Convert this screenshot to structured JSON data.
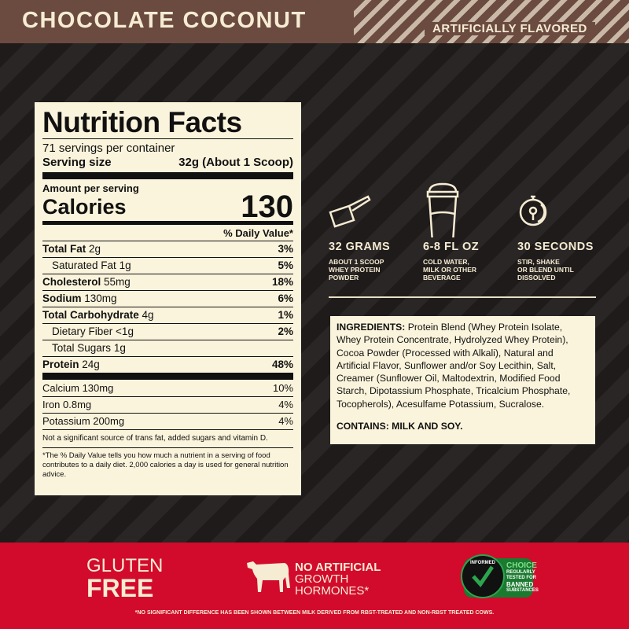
{
  "header": {
    "flavor": "CHOCOLATE COCONUT",
    "flavor_note": "ARTIFICIALLY FLAVORED"
  },
  "nutrition": {
    "title": "Nutrition Facts",
    "servings": "71 servings per container",
    "serving_size_label": "Serving size",
    "serving_size_value": "32g (About 1 Scoop)",
    "amount_per_serving": "Amount per serving",
    "calories_label": "Calories",
    "calories_value": "130",
    "dv_header": "% Daily Value*",
    "rows": [
      {
        "name": "Total Fat",
        "amount": "2g",
        "dv": "3%"
      },
      {
        "name": "Saturated Fat",
        "amount": "1g",
        "dv": "5%"
      },
      {
        "name": "Cholesterol",
        "amount": "55mg",
        "dv": "18%"
      },
      {
        "name": "Sodium",
        "amount": "130mg",
        "dv": "6%"
      },
      {
        "name": "Total Carbohydrate",
        "amount": "4g",
        "dv": "1%"
      },
      {
        "name": "Dietary Fiber",
        "amount": "<1g",
        "dv": "2%"
      },
      {
        "name": "Total Sugars",
        "amount": "1g",
        "dv": ""
      },
      {
        "name": "Protein",
        "amount": "24g",
        "dv": "48%"
      }
    ],
    "vitamins": [
      {
        "name": "Calcium 130mg",
        "dv": "10%"
      },
      {
        "name": "Iron 0.8mg",
        "dv": "4%"
      },
      {
        "name": "Potassium 200mg",
        "dv": "4%"
      }
    ],
    "note": "Not a significant source of trans fat, added sugars and vitamin D.",
    "footnote": "*The % Daily Value tells you how much a nutrient in a serving of food contributes to a daily diet. 2,000 calories a day is used for general nutrition advice."
  },
  "directions": [
    {
      "icon": "scoop-icon",
      "title": "32 GRAMS",
      "sub": "ABOUT 1 SCOOP\nWHEY PROTEIN\nPOWDER"
    },
    {
      "icon": "shaker-icon",
      "title": "6-8 FL OZ",
      "sub": "COLD WATER,\nMILK OR OTHER\nBEVERAGE"
    },
    {
      "icon": "timer-icon",
      "title": "30 SECONDS",
      "sub": "STIR, SHAKE\nOR BLEND UNTIL\nDISSOLVED"
    }
  ],
  "ingredients": {
    "label": "INGREDIENTS:",
    "text": " Protein Blend (Whey Protein Isolate, Whey Protein Concentrate, Hydrolyzed Whey Protein), Cocoa Powder (Processed with Alkali), Natural and Artificial Flavor, Sunflower and/or Soy Lecithin, Salt, Creamer (Sunflower Oil, Maltodextrin, Modified Food Starch, Dipotassium Phosphate, Tricalcium Phosphate, Tocopherols), Acesulfame Potassium, Sucralose.",
    "contains": "CONTAINS: MILK AND SOY."
  },
  "footer": {
    "gluten1": "GLUTEN",
    "gluten2": "FREE",
    "hormones1": "NO ARTIFICIAL",
    "hormones2": "GROWTH",
    "hormones3": "HORMONES*",
    "badge_choice": "CHOICE",
    "badge_text": "REGULARLY TESTED FOR",
    "badge_banned": "BANNED",
    "badge_sub": "SUBSTANCES",
    "badge_ring": "INFORMED",
    "disclaimer": "*NO SIGNIFICANT DIFFERENCE HAS BEEN SHOWN BETWEEN MILK DERIVED FROM RBST-TREATED AND NON-RBST TREATED COWS."
  },
  "colors": {
    "brown": "#6b4b40",
    "cream": "#fbf4dc",
    "red": "#d20b2c",
    "dark": "#201d1c"
  }
}
